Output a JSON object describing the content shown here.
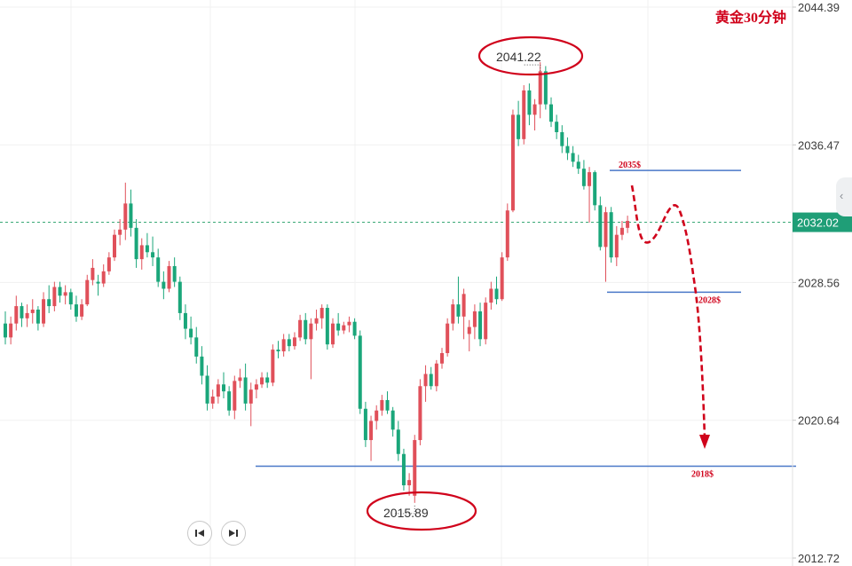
{
  "title": "黄金30分钟",
  "colors": {
    "up": "#e0505a",
    "down": "#1aa67a",
    "annotation": "#d0021b",
    "level_line": "#4a78c8",
    "current_price_bg": "#1f9e77"
  },
  "navigation": {
    "prev_icon": "skip-back-icon",
    "next_icon": "skip-forward-icon",
    "edge_icon": "chevron-left-icon"
  },
  "chart_data": {
    "type": "candlestick",
    "ylim": [
      2012.72,
      2044.39
    ],
    "y_ticks": [
      2044.39,
      2036.47,
      2028.56,
      2020.64,
      2012.72
    ],
    "y_tick_labels": [
      "2044.39",
      "2036.47",
      "2028.56",
      "2020.64",
      "2012.72"
    ],
    "current_price": 2032.02,
    "current_price_label": "2032.02",
    "high_label": "2041.22",
    "low_label": "2015.89",
    "levels": [
      {
        "value": 2035,
        "label": "2035$"
      },
      {
        "value": 2028,
        "label": "2028$"
      },
      {
        "value": 2018,
        "label": "2018$"
      }
    ],
    "grid": true,
    "candles": [
      [
        2026.2,
        2026.9,
        2025.0,
        2025.4
      ],
      [
        2025.4,
        2026.6,
        2025.0,
        2026.2
      ],
      [
        2026.2,
        2027.8,
        2025.8,
        2027.2
      ],
      [
        2027.2,
        2027.4,
        2026.0,
        2026.5
      ],
      [
        2026.5,
        2027.3,
        2026.0,
        2026.8
      ],
      [
        2026.8,
        2027.6,
        2026.2,
        2027.0
      ],
      [
        2027.0,
        2027.2,
        2025.8,
        2026.2
      ],
      [
        2026.2,
        2028.0,
        2026.0,
        2027.6
      ],
      [
        2027.6,
        2028.4,
        2026.8,
        2027.2
      ],
      [
        2027.2,
        2028.6,
        2026.9,
        2028.3
      ],
      [
        2028.3,
        2028.6,
        2027.4,
        2027.8
      ],
      [
        2027.8,
        2028.4,
        2027.3,
        2028.0
      ],
      [
        2028.0,
        2028.2,
        2027.0,
        2027.3
      ],
      [
        2027.3,
        2027.8,
        2026.3,
        2026.6
      ],
      [
        2026.6,
        2027.6,
        2026.4,
        2027.3
      ],
      [
        2027.3,
        2029.0,
        2027.2,
        2028.7
      ],
      [
        2028.7,
        2029.9,
        2028.4,
        2029.4
      ],
      [
        2028.6,
        2029.0,
        2027.8,
        2028.5
      ],
      [
        2028.5,
        2029.6,
        2028.3,
        2029.2
      ],
      [
        2029.2,
        2030.3,
        2029.0,
        2030.0
      ],
      [
        2030.0,
        2031.6,
        2029.8,
        2031.3
      ],
      [
        2031.3,
        2032.2,
        2030.7,
        2031.6
      ],
      [
        2031.6,
        2034.3,
        2031.0,
        2033.1
      ],
      [
        2033.1,
        2033.9,
        2031.2,
        2031.7
      ],
      [
        2031.7,
        2032.2,
        2029.4,
        2029.9
      ],
      [
        2029.9,
        2031.1,
        2029.3,
        2030.7
      ],
      [
        2030.7,
        2031.4,
        2030.0,
        2030.3
      ],
      [
        2030.3,
        2031.2,
        2029.5,
        2030.0
      ],
      [
        2030.0,
        2030.5,
        2028.3,
        2028.6
      ],
      [
        2028.6,
        2029.2,
        2027.6,
        2028.2
      ],
      [
        2028.2,
        2029.8,
        2028.0,
        2029.5
      ],
      [
        2029.5,
        2030.0,
        2028.3,
        2028.6
      ],
      [
        2028.6,
        2028.9,
        2026.4,
        2026.8
      ],
      [
        2026.8,
        2027.3,
        2025.3,
        2025.9
      ],
      [
        2025.9,
        2026.6,
        2025.0,
        2025.4
      ],
      [
        2025.4,
        2026.0,
        2023.9,
        2024.3
      ],
      [
        2024.3,
        2024.9,
        2022.7,
        2023.2
      ],
      [
        2023.2,
        2023.8,
        2021.2,
        2021.6
      ],
      [
        2021.6,
        2022.4,
        2021.3,
        2022.0
      ],
      [
        2022.0,
        2023.0,
        2021.6,
        2022.7
      ],
      [
        2022.7,
        2023.4,
        2021.9,
        2022.3
      ],
      [
        2022.3,
        2022.6,
        2020.9,
        2021.2
      ],
      [
        2021.2,
        2023.2,
        2020.7,
        2022.9
      ],
      [
        2022.9,
        2023.6,
        2022.5,
        2023.1
      ],
      [
        2023.1,
        2023.9,
        2021.2,
        2021.6
      ],
      [
        2021.6,
        2022.8,
        2020.3,
        2022.4
      ],
      [
        2022.4,
        2023.0,
        2021.9,
        2022.7
      ],
      [
        2022.7,
        2023.4,
        2022.5,
        2023.1
      ],
      [
        2023.1,
        2023.4,
        2022.5,
        2022.8
      ],
      [
        2022.8,
        2025.0,
        2022.6,
        2024.7
      ],
      [
        2024.7,
        2025.2,
        2024.2,
        2024.6
      ],
      [
        2024.6,
        2025.6,
        2024.3,
        2025.3
      ],
      [
        2025.3,
        2025.6,
        2024.6,
        2024.9
      ],
      [
        2024.9,
        2025.7,
        2024.7,
        2025.4
      ],
      [
        2025.4,
        2026.7,
        2025.2,
        2026.4
      ],
      [
        2026.4,
        2026.8,
        2025.0,
        2025.3
      ],
      [
        2025.3,
        2026.5,
        2023.0,
        2026.2
      ],
      [
        2026.2,
        2027.0,
        2025.8,
        2026.5
      ],
      [
        2026.5,
        2027.3,
        2025.9,
        2027.1
      ],
      [
        2027.1,
        2027.3,
        2024.7,
        2025.0
      ],
      [
        2025.0,
        2026.5,
        2024.8,
        2026.2
      ],
      [
        2026.2,
        2026.8,
        2025.5,
        2025.8
      ],
      [
        2025.8,
        2026.3,
        2025.6,
        2026.1
      ],
      [
        2026.1,
        2026.6,
        2025.7,
        2026.3
      ],
      [
        2026.3,
        2026.5,
        2025.3,
        2025.5
      ],
      [
        2025.5,
        2025.8,
        2021.0,
        2021.3
      ],
      [
        2021.3,
        2021.7,
        2019.1,
        2019.5
      ],
      [
        2019.5,
        2020.9,
        2018.3,
        2020.6
      ],
      [
        2020.6,
        2021.5,
        2020.1,
        2021.2
      ],
      [
        2021.2,
        2022.1,
        2020.9,
        2021.8
      ],
      [
        2021.8,
        2022.3,
        2021.0,
        2021.2
      ],
      [
        2021.2,
        2021.4,
        2019.7,
        2020.1
      ],
      [
        2020.1,
        2020.6,
        2018.3,
        2018.7
      ],
      [
        2018.7,
        2019.0,
        2016.6,
        2016.9
      ],
      [
        2016.9,
        2017.6,
        2016.3,
        2017.2
      ],
      [
        2016.3,
        2019.8,
        2015.89,
        2019.5
      ],
      [
        2019.5,
        2023.0,
        2019.2,
        2022.6
      ],
      [
        2022.6,
        2023.8,
        2021.7,
        2023.3
      ],
      [
        2023.3,
        2023.7,
        2022.4,
        2022.6
      ],
      [
        2022.6,
        2024.1,
        2022.3,
        2023.9
      ],
      [
        2023.9,
        2024.8,
        2023.6,
        2024.5
      ],
      [
        2024.5,
        2026.5,
        2024.3,
        2026.2
      ],
      [
        2026.2,
        2027.6,
        2025.8,
        2027.3
      ],
      [
        2027.3,
        2028.9,
        2026.2,
        2026.6
      ],
      [
        2026.6,
        2028.2,
        2025.3,
        2027.9
      ],
      [
        2025.6,
        2026.4,
        2024.6,
        2026.0
      ],
      [
        2026.0,
        2027.3,
        2025.3,
        2026.9
      ],
      [
        2026.9,
        2027.4,
        2024.9,
        2025.3
      ],
      [
        2025.3,
        2027.7,
        2025.0,
        2027.4
      ],
      [
        2027.4,
        2028.6,
        2027.0,
        2028.2
      ],
      [
        2028.2,
        2028.9,
        2027.3,
        2027.6
      ],
      [
        2027.6,
        2030.3,
        2027.5,
        2030.0
      ],
      [
        2030.0,
        2033.1,
        2029.8,
        2032.7
      ],
      [
        2032.7,
        2038.5,
        2032.6,
        2038.2
      ],
      [
        2038.2,
        2039.0,
        2036.4,
        2036.8
      ],
      [
        2036.8,
        2039.9,
        2036.5,
        2039.6
      ],
      [
        2039.6,
        2040.0,
        2037.6,
        2038.2
      ],
      [
        2038.2,
        2039.1,
        2037.3,
        2038.8
      ],
      [
        2038.8,
        2041.22,
        2038.0,
        2040.7
      ],
      [
        2040.7,
        2041.0,
        2038.5,
        2038.8
      ],
      [
        2038.8,
        2039.2,
        2037.5,
        2037.8
      ],
      [
        2037.8,
        2038.2,
        2036.8,
        2037.2
      ],
      [
        2037.2,
        2037.6,
        2036.0,
        2036.4
      ],
      [
        2036.4,
        2036.9,
        2035.6,
        2036.0
      ],
      [
        2036.0,
        2036.4,
        2035.2,
        2035.5
      ],
      [
        2035.5,
        2035.9,
        2034.8,
        2035.1
      ],
      [
        2035.1,
        2035.6,
        2033.9,
        2034.1
      ],
      [
        2034.1,
        2035.2,
        2032.0,
        2034.9
      ],
      [
        2034.9,
        2035.0,
        2032.7,
        2033.0
      ],
      [
        2033.0,
        2033.5,
        2030.4,
        2030.6
      ],
      [
        2030.6,
        2032.9,
        2028.6,
        2032.6
      ],
      [
        2032.6,
        2032.9,
        2029.7,
        2030.0
      ],
      [
        2030.0,
        2031.8,
        2029.5,
        2031.3
      ],
      [
        2031.3,
        2032.1,
        2031.0,
        2031.7
      ],
      [
        2031.7,
        2032.4,
        2031.4,
        2032.1
      ]
    ]
  }
}
